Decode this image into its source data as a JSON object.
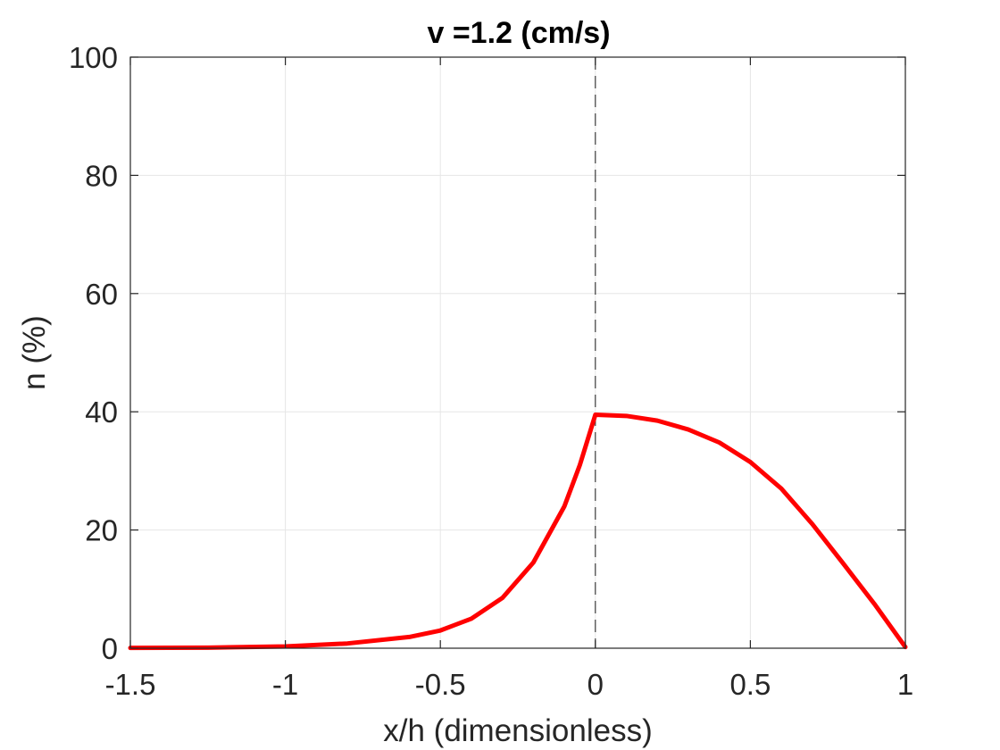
{
  "chart_data": {
    "type": "line",
    "title": "v =1.2 (cm/s)",
    "xlabel": "x/h (dimensionless)",
    "ylabel": "n (%)",
    "xlim": [
      -1.5,
      1
    ],
    "ylim": [
      0,
      100
    ],
    "xticks": [
      -1.5,
      -1,
      -0.5,
      0,
      0.5,
      1
    ],
    "xtick_labels": [
      "-1.5",
      "-1",
      "-0.5",
      "0",
      "0.5",
      "1"
    ],
    "yticks": [
      0,
      20,
      40,
      60,
      80,
      100
    ],
    "ytick_labels": [
      "0",
      "20",
      "40",
      "60",
      "80",
      "100"
    ],
    "grid": true,
    "reference_line": {
      "x": 0,
      "style": "dashed",
      "color": "#000000"
    },
    "series": [
      {
        "color": "#ff0000",
        "x": [
          -1.5,
          -1.25,
          -1.0,
          -0.8,
          -0.6,
          -0.5,
          -0.4,
          -0.3,
          -0.2,
          -0.1,
          -0.05,
          0.0,
          0.1,
          0.2,
          0.3,
          0.4,
          0.5,
          0.6,
          0.7,
          0.8,
          0.9,
          1.0
        ],
        "y": [
          0.05,
          0.1,
          0.3,
          0.8,
          1.9,
          3.0,
          5.0,
          8.5,
          14.5,
          24.0,
          31.0,
          39.5,
          39.3,
          38.5,
          37.0,
          34.8,
          31.5,
          27.0,
          21.0,
          14.3,
          7.5,
          0.2
        ]
      }
    ]
  }
}
